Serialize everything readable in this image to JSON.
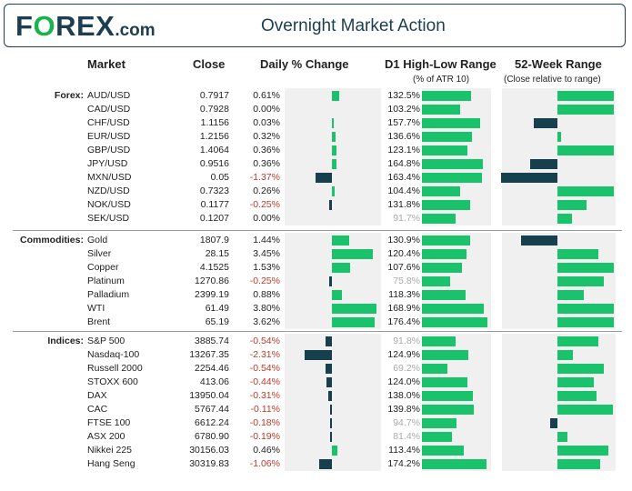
{
  "brand": {
    "logo_prefix": "F",
    "logo_o": "O",
    "logo_rest": "REX",
    "logo_suffix": ".com"
  },
  "title": "Overnight Market Action",
  "columns": {
    "market": "Market",
    "close": "Close",
    "daily": "Daily % Change",
    "range": "D1 High-Low Range",
    "range_sub": "(% of ATR 10)",
    "week52": "52-Week Range",
    "week52_sub": "(Close relative to range)"
  },
  "sections": [
    {
      "label": "Forex:",
      "rows": [
        {
          "name": "AUD/USD",
          "close": "0.7917",
          "chg": "0.61%",
          "chg_value": 0.61,
          "range": "132.5%",
          "range_value": 132.5,
          "w52": 1.0
        },
        {
          "name": "CAD/USD",
          "close": "0.7928",
          "chg": "0.00%",
          "chg_value": 0.0,
          "range": "103.2%",
          "range_value": 103.2,
          "w52": 1.0
        },
        {
          "name": "CHF/USD",
          "close": "1.1156",
          "chg": "0.03%",
          "chg_value": 0.03,
          "range": "157.7%",
          "range_value": 157.7,
          "w52": -0.42
        },
        {
          "name": "EUR/USD",
          "close": "1.2156",
          "chg": "0.32%",
          "chg_value": 0.32,
          "range": "136.6%",
          "range_value": 136.6,
          "w52": 0.07
        },
        {
          "name": "GBP/USD",
          "close": "1.4064",
          "chg": "0.36%",
          "chg_value": 0.36,
          "range": "123.1%",
          "range_value": 123.1,
          "w52": 1.0
        },
        {
          "name": "JPY/USD",
          "close": "0.9516",
          "chg": "0.36%",
          "chg_value": 0.36,
          "range": "164.8%",
          "range_value": 164.8,
          "w52": -0.49
        },
        {
          "name": "MXN/USD",
          "close": "0.05",
          "chg": "-1.37%",
          "chg_value": -1.37,
          "range": "163.4%",
          "range_value": 163.4,
          "w52": -1.0
        },
        {
          "name": "NZD/USD",
          "close": "0.7323",
          "chg": "0.26%",
          "chg_value": 0.26,
          "range": "104.4%",
          "range_value": 104.4,
          "w52": 1.0
        },
        {
          "name": "NOK/USD",
          "close": "0.1177",
          "chg": "-0.25%",
          "chg_value": -0.25,
          "range": "131.8%",
          "range_value": 131.8,
          "w52": 0.52
        },
        {
          "name": "SEK/USD",
          "close": "0.1207",
          "chg": "0.00%",
          "chg_value": 0.0,
          "range": "91.7%",
          "range_value": 91.7,
          "w52": 0.25,
          "range_light": true
        }
      ]
    },
    {
      "label": "Commodities:",
      "rows": [
        {
          "name": "Gold",
          "close": "1807.9",
          "chg": "1.44%",
          "chg_value": 1.44,
          "range": "130.9%",
          "range_value": 130.9,
          "w52": -0.65
        },
        {
          "name": "Silver",
          "close": "28.15",
          "chg": "3.45%",
          "chg_value": 3.45,
          "range": "120.4%",
          "range_value": 120.4,
          "w52": 0.72
        },
        {
          "name": "Copper",
          "close": "4.1525",
          "chg": "1.53%",
          "chg_value": 1.53,
          "range": "107.6%",
          "range_value": 107.6,
          "w52": 1.0
        },
        {
          "name": "Platinum",
          "close": "1270.86",
          "chg": "-0.25%",
          "chg_value": -0.25,
          "range": "75.8%",
          "range_value": 75.8,
          "w52": 0.82,
          "range_light": true
        },
        {
          "name": "Palladium",
          "close": "2399.19",
          "chg": "0.88%",
          "chg_value": 0.88,
          "range": "118.3%",
          "range_value": 118.3,
          "w52": 0.47
        },
        {
          "name": "WTI",
          "close": "61.49",
          "chg": "3.80%",
          "chg_value": 3.8,
          "range": "168.9%",
          "range_value": 168.9,
          "w52": 1.0
        },
        {
          "name": "Brent",
          "close": "65.19",
          "chg": "3.62%",
          "chg_value": 3.62,
          "range": "176.4%",
          "range_value": 176.4,
          "w52": 1.0
        }
      ]
    },
    {
      "label": "Indices:",
      "rows": [
        {
          "name": "S&P 500",
          "close": "3885.74",
          "chg": "-0.54%",
          "chg_value": -0.54,
          "range": "91.8%",
          "range_value": 91.8,
          "w52": 0.72,
          "range_light": true
        },
        {
          "name": "Nasdaq-100",
          "close": "13267.35",
          "chg": "-2.31%",
          "chg_value": -2.31,
          "range": "124.9%",
          "range_value": 124.9,
          "w52": 0.27
        },
        {
          "name": "Russell 2000",
          "close": "2254.46",
          "chg": "-0.54%",
          "chg_value": -0.54,
          "range": "69.2%",
          "range_value": 69.2,
          "w52": 0.82,
          "range_light": true
        },
        {
          "name": "STOXX 600",
          "close": "413.06",
          "chg": "-0.44%",
          "chg_value": -0.44,
          "range": "124.0%",
          "range_value": 124.0,
          "w52": 0.65
        },
        {
          "name": "DAX",
          "close": "13950.04",
          "chg": "-0.31%",
          "chg_value": -0.31,
          "range": "138.0%",
          "range_value": 138.0,
          "w52": 0.7
        },
        {
          "name": "CAC",
          "close": "5767.44",
          "chg": "-0.11%",
          "chg_value": -0.11,
          "range": "139.8%",
          "range_value": 139.8,
          "w52": 0.98
        },
        {
          "name": "FTSE 100",
          "close": "6612.24",
          "chg": "-0.18%",
          "chg_value": -0.18,
          "range": "94.7%",
          "range_value": 94.7,
          "w52": -0.13,
          "range_light": true
        },
        {
          "name": "ASX 200",
          "close": "6780.90",
          "chg": "-0.19%",
          "chg_value": -0.19,
          "range": "81.4%",
          "range_value": 81.4,
          "w52": 0.17,
          "range_light": true
        },
        {
          "name": "Nikkei 225",
          "close": "30156.03",
          "chg": "0.46%",
          "chg_value": 0.46,
          "range": "113.4%",
          "range_value": 113.4,
          "w52": 0.9
        },
        {
          "name": "Hang Seng",
          "close": "30319.83",
          "chg": "-1.06%",
          "chg_value": -1.06,
          "range": "174.2%",
          "range_value": 174.2,
          "w52": 0.75
        }
      ]
    }
  ],
  "colors": {
    "positive": "#19c26b",
    "negative": "#17404f",
    "panel": "#f0f0f0",
    "brand": "#1c3e4e"
  }
}
